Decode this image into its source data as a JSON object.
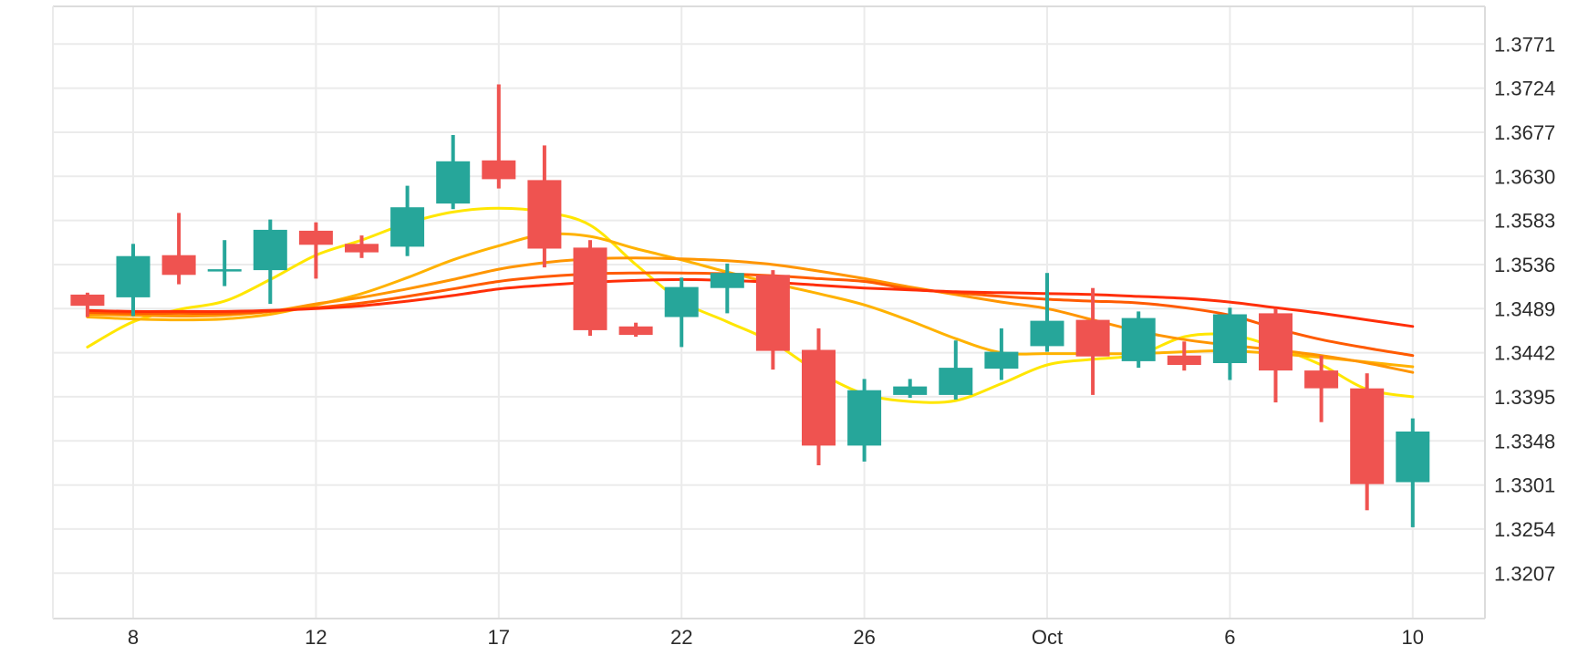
{
  "page": {
    "background_color": "#ffffff",
    "title": ""
  },
  "chart_data": {
    "type": "candlestick",
    "title": "",
    "xlabel": "",
    "ylabel": "",
    "grid": true,
    "legend": "none",
    "y_axis": {
      "side": "right",
      "tick_labels": [
        "1.3771",
        "1.3724",
        "1.3677",
        "1.3630",
        "1.3583",
        "1.3536",
        "1.3489",
        "1.3442",
        "1.3395",
        "1.3348",
        "1.3301",
        "1.3254",
        "1.3207"
      ],
      "tick_values": [
        1.3771,
        1.3724,
        1.3677,
        1.363,
        1.3583,
        1.3536,
        1.3489,
        1.3442,
        1.3395,
        1.3348,
        1.3301,
        1.3254,
        1.3207
      ],
      "ylim": [
        1.3163,
        1.3816
      ]
    },
    "x_axis": {
      "tick_labels": [
        "8",
        "12",
        "17",
        "22",
        "26",
        "Oct",
        "6",
        "10"
      ],
      "tick_slots": [
        1,
        5,
        9,
        13,
        17,
        21,
        25,
        29
      ],
      "num_slots": 30
    },
    "candles": {
      "up_color": "#26a69a",
      "down_color": "#ef5350",
      "ohlc": [
        [
          1.3504,
          1.3506,
          1.348,
          1.3492
        ],
        [
          1.3501,
          1.3558,
          1.3481,
          1.3545
        ],
        [
          1.3546,
          1.3591,
          1.3515,
          1.3525
        ],
        [
          1.3529,
          1.3562,
          1.3513,
          1.3531
        ],
        [
          1.353,
          1.3584,
          1.3494,
          1.3573
        ],
        [
          1.3572,
          1.3581,
          1.3521,
          1.3557
        ],
        [
          1.3558,
          1.3567,
          1.3543,
          1.3549
        ],
        [
          1.3555,
          1.362,
          1.3545,
          1.3597
        ],
        [
          1.3601,
          1.3674,
          1.3595,
          1.3646
        ],
        [
          1.3647,
          1.3728,
          1.3617,
          1.3627
        ],
        [
          1.3626,
          1.3663,
          1.3533,
          1.3553
        ],
        [
          1.3554,
          1.3562,
          1.346,
          1.3466
        ],
        [
          1.347,
          1.3474,
          1.3459,
          1.3461
        ],
        [
          1.348,
          1.3522,
          1.3448,
          1.3512
        ],
        [
          1.3511,
          1.3537,
          1.3484,
          1.3527
        ],
        [
          1.3525,
          1.353,
          1.3424,
          1.3444
        ],
        [
          1.3445,
          1.3468,
          1.3322,
          1.3343
        ],
        [
          1.3343,
          1.3414,
          1.3326,
          1.3402
        ],
        [
          1.3397,
          1.3414,
          1.3394,
          1.3406
        ],
        [
          1.3397,
          1.3455,
          1.3392,
          1.3426
        ],
        [
          1.3425,
          1.3468,
          1.3413,
          1.3443
        ],
        [
          1.3449,
          1.3527,
          1.3443,
          1.3476
        ],
        [
          1.3477,
          1.3511,
          1.3397,
          1.3438
        ],
        [
          1.3433,
          1.3486,
          1.3426,
          1.3479
        ],
        [
          1.3439,
          1.3454,
          1.3423,
          1.3429
        ],
        [
          1.3431,
          1.349,
          1.3413,
          1.3483
        ],
        [
          1.3484,
          1.3489,
          1.3389,
          1.3423
        ],
        [
          1.3423,
          1.3439,
          1.3368,
          1.3404
        ],
        [
          1.3404,
          1.342,
          1.3274,
          1.3302
        ],
        [
          1.3304,
          1.3372,
          1.3256,
          1.3358
        ]
      ]
    },
    "moving_averages": [
      {
        "name": "ma-yellow-fastest",
        "color": "#ffe600",
        "values": [
          1.3448,
          1.3475,
          1.3488,
          1.3497,
          1.352,
          1.3546,
          1.3562,
          1.358,
          1.3592,
          1.3596,
          1.3592,
          1.3578,
          1.3536,
          1.3497,
          1.3475,
          1.3453,
          1.3421,
          1.3398,
          1.339,
          1.3391,
          1.3409,
          1.3429,
          1.3435,
          1.344,
          1.3459,
          1.3461,
          1.3448,
          1.3429,
          1.3403,
          1.3395
        ]
      },
      {
        "name": "ma-gold",
        "color": "#ffb200",
        "values": [
          1.348,
          1.3478,
          1.3477,
          1.3478,
          1.3483,
          1.3493,
          1.3505,
          1.3522,
          1.3541,
          1.3556,
          1.3568,
          1.3566,
          1.3553,
          1.3541,
          1.3528,
          1.3516,
          1.3505,
          1.3493,
          1.3476,
          1.3457,
          1.3442,
          1.3441,
          1.3441,
          1.3441,
          1.3443,
          1.3444,
          1.3441,
          1.3437,
          1.3432,
          1.3427
        ]
      },
      {
        "name": "ma-orange",
        "color": "#ff9500",
        "values": [
          1.3483,
          1.3482,
          1.3481,
          1.3482,
          1.3486,
          1.3494,
          1.3501,
          1.351,
          1.352,
          1.3531,
          1.3538,
          1.3542,
          1.3543,
          1.3542,
          1.354,
          1.3536,
          1.3529,
          1.3521,
          1.3512,
          1.3504,
          1.3496,
          1.3489,
          1.3477,
          1.3465,
          1.3456,
          1.345,
          1.3445,
          1.3439,
          1.3431,
          1.3421
        ]
      },
      {
        "name": "ma-orangered",
        "color": "#ff5b00",
        "values": [
          1.3485,
          1.3484,
          1.3484,
          1.3484,
          1.3486,
          1.349,
          1.3495,
          1.3502,
          1.351,
          1.3518,
          1.3523,
          1.3526,
          1.3527,
          1.3527,
          1.3526,
          1.3524,
          1.3521,
          1.3518,
          1.351,
          1.3506,
          1.3502,
          1.3499,
          1.3497,
          1.3495,
          1.349,
          1.3482,
          1.3468,
          1.3456,
          1.3447,
          1.3439
        ]
      },
      {
        "name": "ma-red-slowest",
        "color": "#ff2e08",
        "values": [
          1.3487,
          1.3486,
          1.3486,
          1.3486,
          1.3487,
          1.3489,
          1.3492,
          1.3497,
          1.3503,
          1.351,
          1.3514,
          1.3517,
          1.3519,
          1.352,
          1.3519,
          1.3517,
          1.3514,
          1.3511,
          1.3509,
          1.3507,
          1.3506,
          1.3505,
          1.3504,
          1.3502,
          1.35,
          1.3496,
          1.349,
          1.3484,
          1.3477,
          1.347
        ]
      }
    ],
    "style": {
      "grid_color": "#ebebeb",
      "border_color": "#dcdcdc",
      "axis_text_color": "#2b2b2b",
      "background": "#ffffff"
    }
  }
}
